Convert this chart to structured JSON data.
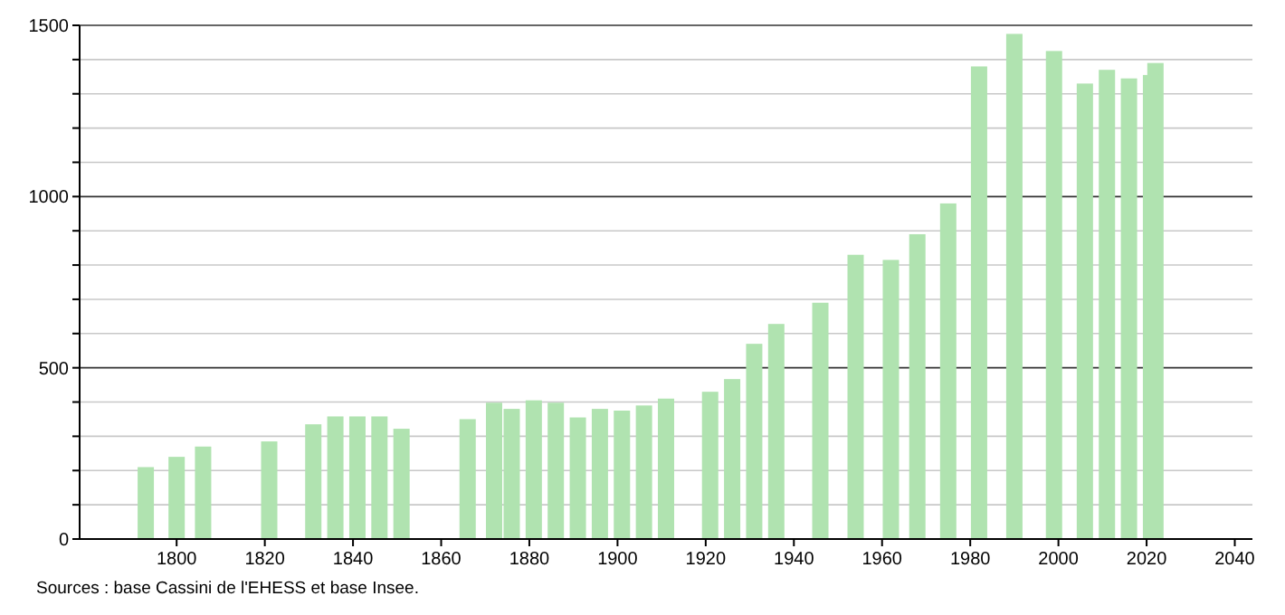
{
  "chart_data": {
    "type": "bar",
    "color": "#b0e3b0",
    "x": [
      1793,
      1800,
      1806,
      1821,
      1831,
      1836,
      1841,
      1846,
      1851,
      1866,
      1872,
      1876,
      1881,
      1886,
      1891,
      1896,
      1901,
      1906,
      1911,
      1921,
      1926,
      1931,
      1936,
      1946,
      1954,
      1962,
      1968,
      1975,
      1982,
      1990,
      1999,
      2006,
      2011,
      2016,
      2021,
      2022
    ],
    "values": [
      210,
      240,
      270,
      285,
      335,
      358,
      358,
      358,
      322,
      350,
      398,
      380,
      405,
      398,
      355,
      380,
      375,
      390,
      410,
      430,
      467,
      570,
      628,
      690,
      830,
      815,
      890,
      980,
      1380,
      1475,
      1425,
      1330,
      1370,
      1345,
      1355,
      1390
    ],
    "xlim": [
      1778,
      2044
    ],
    "xticks": [
      1800,
      1820,
      1840,
      1860,
      1880,
      1900,
      1920,
      1940,
      1960,
      1980,
      2000,
      2020,
      2040
    ],
    "ylim": [
      0,
      1500
    ],
    "yticks": [
      0,
      {
        "value": 100,
        "label": null
      },
      {
        "value": 200,
        "label": null
      },
      {
        "value": 300,
        "label": null
      },
      {
        "value": 400,
        "label": null
      },
      500,
      {
        "value": 600,
        "label": null
      },
      {
        "value": 700,
        "label": null
      },
      {
        "value": 800,
        "label": null
      },
      {
        "value": 900,
        "label": null
      },
      1000,
      {
        "value": 1100,
        "label": null
      },
      {
        "value": 1200,
        "label": null
      },
      {
        "value": 1300,
        "label": null
      },
      {
        "value": 1400,
        "label": null
      },
      1500
    ],
    "grid": true,
    "annotations": [
      "Sources : base Cassini de l'EHESS et base Insee."
    ]
  }
}
